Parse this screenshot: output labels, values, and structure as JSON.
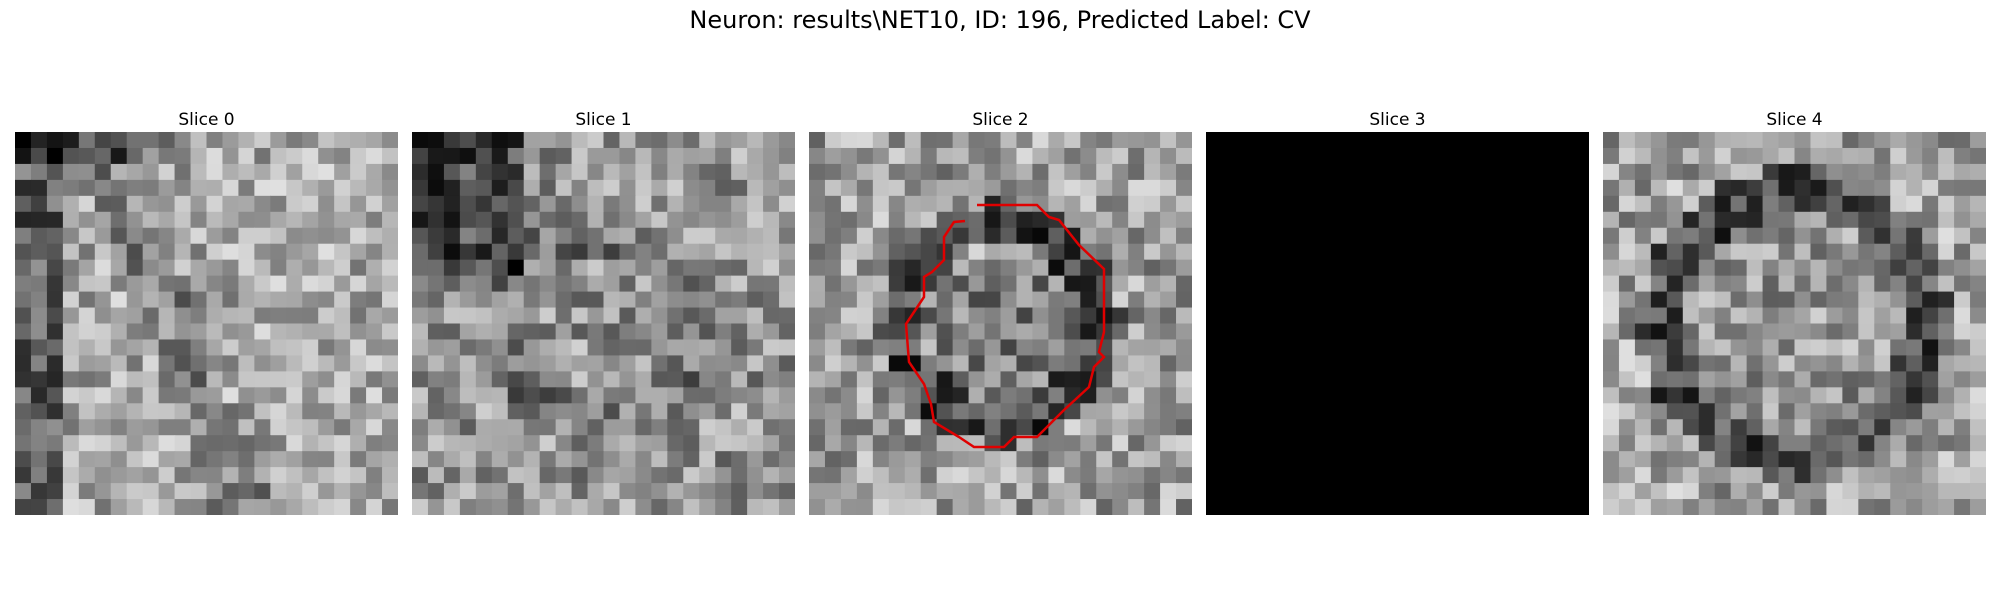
{
  "figure": {
    "title": "Neuron: results\\NET10, ID: 196, Predicted Label: CV",
    "background": "#ffffff",
    "contour_color": "#e00000"
  },
  "slices": [
    {
      "title": "Slice 0",
      "seed": 11,
      "base": 0.66,
      "contrast": 0.55,
      "pattern": "diag-dark-edges",
      "blank": false,
      "contour": false
    },
    {
      "title": "Slice 1",
      "seed": 23,
      "base": 0.58,
      "contrast": 0.6,
      "pattern": "topleft-dark",
      "blank": false,
      "contour": false
    },
    {
      "title": "Slice 2",
      "seed": 37,
      "base": 0.62,
      "contrast": 0.6,
      "pattern": "ring",
      "blank": false,
      "contour": true
    },
    {
      "title": "Slice 3",
      "seed": 0,
      "base": 0.0,
      "contrast": 0.0,
      "pattern": "none",
      "blank": true,
      "contour": false
    },
    {
      "title": "Slice 4",
      "seed": 51,
      "base": 0.64,
      "contrast": 0.6,
      "pattern": "ring-large",
      "blank": false,
      "contour": false
    }
  ]
}
